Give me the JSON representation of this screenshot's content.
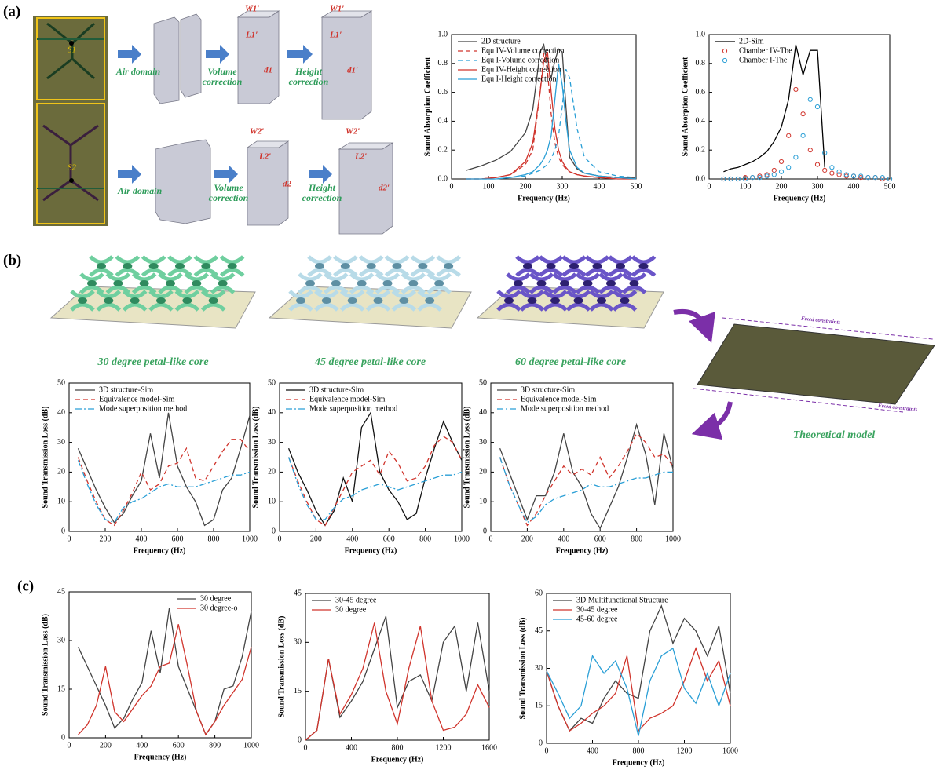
{
  "panels": {
    "a": "(a)",
    "b": "(b)",
    "c": "(c)"
  },
  "panel_a": {
    "cells": [
      "S1",
      "S2"
    ],
    "rows": [
      {
        "steps": [
          [
            "Air domain"
          ],
          [
            "Volume",
            "correction"
          ],
          [
            "Height",
            "correction"
          ]
        ],
        "dims": [
          "W1′",
          "L1′",
          "d1",
          "W1′",
          "L1′",
          "d1′"
        ]
      },
      {
        "steps": [
          [
            "Air domain"
          ],
          [
            "Volume",
            "correction"
          ],
          [
            "Height",
            "correction"
          ]
        ],
        "dims": [
          "W2′",
          "L2′",
          "d2",
          "W2′",
          "L2′",
          "d2′"
        ]
      }
    ]
  },
  "panel_b": {
    "cores": [
      "30 degree petal-like core",
      "45 degree petal-like core",
      "60 degree petal-like core"
    ],
    "model": {
      "title": "Theoretical model",
      "constraints": [
        "Fixed constraints",
        "Fixed constraints"
      ]
    }
  },
  "chart_data": [
    {
      "type": "line",
      "xlabel": "Frequency (Hz)",
      "ylabel": "Sound Absorption Coefficient",
      "legend": "upper left",
      "x": [
        40,
        80,
        120,
        160,
        200,
        220,
        240,
        250,
        260,
        270,
        280,
        290,
        300,
        310,
        320,
        340,
        360,
        400,
        450,
        500
      ],
      "xlim": [
        0,
        500
      ],
      "xticks": [
        0,
        100,
        200,
        300,
        400,
        500
      ],
      "ylim": [
        0,
        1
      ],
      "yticks": [
        {
          "value": 0,
          "label": "0.0"
        },
        0.2,
        0.4,
        0.6,
        0.8,
        {
          "value": 1,
          "label": "1.0"
        }
      ],
      "series": [
        {
          "name": "2D structure",
          "color": "#444444",
          "style": "solid",
          "values": [
            0.06,
            0.09,
            0.13,
            0.19,
            0.32,
            0.48,
            0.88,
            0.93,
            0.78,
            0.7,
            0.82,
            0.9,
            0.88,
            0.5,
            0.15,
            0.07,
            0.04,
            0.02,
            0.01,
            0.01
          ]
        },
        {
          "name": "Equ IV-Volume correction",
          "color": "#d0342c",
          "style": "dashed",
          "values": [
            0,
            0,
            0.01,
            0.03,
            0.1,
            0.2,
            0.6,
            0.87,
            0.75,
            0.45,
            0.25,
            0.15,
            0.1,
            0.07,
            0.05,
            0.03,
            0.02,
            0.01,
            0.01,
            0
          ]
        },
        {
          "name": "Equ I-Volume correction",
          "color": "#2a9fd6",
          "style": "dashed",
          "values": [
            0,
            0,
            0,
            0.01,
            0.02,
            0.04,
            0.06,
            0.08,
            0.1,
            0.14,
            0.2,
            0.3,
            0.5,
            0.76,
            0.7,
            0.35,
            0.15,
            0.05,
            0.02,
            0.01
          ]
        },
        {
          "name": "Equ IV-Height correction",
          "color": "#d0342c",
          "style": "solid",
          "values": [
            0,
            0,
            0.01,
            0.03,
            0.12,
            0.25,
            0.6,
            0.82,
            0.88,
            0.6,
            0.35,
            0.2,
            0.12,
            0.08,
            0.05,
            0.03,
            0.02,
            0.01,
            0,
            0
          ]
        },
        {
          "name": "Equ I-Height correction",
          "color": "#2a9fd6",
          "style": "solid",
          "values": [
            0,
            0,
            0,
            0.01,
            0.03,
            0.05,
            0.1,
            0.14,
            0.2,
            0.3,
            0.55,
            0.8,
            0.65,
            0.4,
            0.2,
            0.08,
            0.04,
            0.02,
            0.01,
            0
          ]
        }
      ]
    },
    {
      "type": "line",
      "xlabel": "Frequency (Hz)",
      "ylabel": "Sound Absorption Coefficient",
      "legend": "upper left",
      "x": [
        40,
        60,
        80,
        100,
        120,
        140,
        160,
        180,
        200,
        220,
        240,
        260,
        280,
        300,
        320,
        340,
        360,
        380,
        400,
        420,
        440,
        460,
        480,
        500
      ],
      "xlim": [
        0,
        500
      ],
      "xticks": [
        0,
        100,
        200,
        300,
        400,
        500
      ],
      "ylim": [
        0,
        1
      ],
      "yticks": [
        {
          "value": 0,
          "label": "0.0"
        },
        0.2,
        0.4,
        0.6,
        0.8,
        {
          "value": 1,
          "label": "1.0"
        }
      ],
      "series": [
        {
          "name": "2D-Sim",
          "color": "#000000",
          "style": "solid",
          "values": [
            0.05,
            0.07,
            0.08,
            0.1,
            0.12,
            0.15,
            0.19,
            0.26,
            0.36,
            0.55,
            0.93,
            0.72,
            0.89,
            0.89,
            0.08,
            null,
            null,
            null,
            null,
            null,
            null,
            null,
            null,
            null
          ]
        },
        {
          "name": "Chamber IV-The",
          "color": "#d0342c",
          "style": "markers",
          "values": [
            0,
            0,
            0,
            0.01,
            0.01,
            0.02,
            0.03,
            0.06,
            0.12,
            0.3,
            0.62,
            0.45,
            0.2,
            0.1,
            0.06,
            0.04,
            0.03,
            0.02,
            0.02,
            0.01,
            0.01,
            0.01,
            0,
            0
          ]
        },
        {
          "name": "Chamber I-The",
          "color": "#2a9fd6",
          "style": "markers",
          "values": [
            0,
            0,
            0,
            0,
            0.01,
            0.01,
            0.02,
            0.03,
            0.05,
            0.08,
            0.15,
            0.3,
            0.55,
            0.5,
            0.18,
            0.08,
            0.05,
            0.03,
            0.02,
            0.02,
            0.01,
            0.01,
            0.01,
            0
          ]
        }
      ]
    },
    {
      "type": "line",
      "xlabel": "Frequency (Hz)",
      "ylabel": "Sound Transmission Loss (dB)",
      "legend": "upper left",
      "x": [
        50,
        100,
        150,
        200,
        250,
        300,
        350,
        400,
        450,
        500,
        550,
        600,
        650,
        700,
        750,
        800,
        850,
        900,
        950,
        1000
      ],
      "xlim": [
        0,
        1000
      ],
      "xticks": [
        0,
        200,
        400,
        600,
        800,
        1000
      ],
      "ylim": [
        0,
        50
      ],
      "yticks": [
        0,
        10,
        20,
        30,
        40,
        50
      ],
      "series": [
        {
          "name": "3D structure-Sim",
          "color": "#444444",
          "style": "solid",
          "values": [
            28,
            21,
            14,
            8,
            3,
            6,
            12,
            17,
            33,
            18,
            40,
            22,
            15,
            10,
            2,
            4,
            14,
            18,
            28,
            39
          ]
        },
        {
          "name": "Equivalence model-Sim",
          "color": "#d0342c",
          "style": "dashed",
          "values": [
            25,
            17,
            10,
            4,
            2,
            7,
            13,
            20,
            14,
            16,
            22,
            23,
            28,
            18,
            17,
            22,
            27,
            31,
            31,
            27
          ]
        },
        {
          "name": "Mode superposition method",
          "color": "#2a9fd6",
          "style": "dashdot",
          "values": [
            24,
            16,
            9,
            4,
            3,
            8,
            10,
            11,
            13,
            15,
            16,
            15,
            15,
            15,
            16,
            17,
            18,
            19,
            19,
            20
          ]
        }
      ]
    },
    {
      "type": "line",
      "xlabel": "Frequency (Hz)",
      "ylabel": "Sound Transmission Loss (dB)",
      "legend": "upper left",
      "x": [
        50,
        100,
        150,
        200,
        250,
        300,
        350,
        400,
        450,
        500,
        550,
        600,
        650,
        700,
        750,
        800,
        850,
        900,
        950,
        1000
      ],
      "xlim": [
        0,
        1000
      ],
      "xticks": [
        0,
        200,
        400,
        600,
        800,
        1000
      ],
      "ylim": [
        0,
        50
      ],
      "yticks": [
        0,
        10,
        20,
        30,
        40,
        50
      ],
      "series": [
        {
          "name": "3D structure-Sim",
          "color": "#111111",
          "style": "solid",
          "values": [
            28,
            20,
            14,
            7,
            2,
            7,
            18,
            10,
            35,
            40,
            20,
            14,
            10,
            4,
            6,
            18,
            28,
            37,
            30,
            24
          ]
        },
        {
          "name": "Equivalence model-Sim",
          "color": "#d0342c",
          "style": "dashed",
          "values": [
            25,
            17,
            10,
            4,
            2,
            8,
            14,
            20,
            22,
            24,
            19,
            27,
            23,
            17,
            18,
            22,
            29,
            32,
            30,
            24
          ]
        },
        {
          "name": "Mode superposition method",
          "color": "#2a9fd6",
          "style": "dashdot",
          "values": [
            25,
            16,
            9,
            4,
            4,
            8,
            11,
            12,
            14,
            15,
            16,
            15,
            14,
            15,
            16,
            17,
            18,
            19,
            19,
            20
          ]
        }
      ]
    },
    {
      "type": "line",
      "xlabel": "Frequency (Hz)",
      "ylabel": "Sound Transmission Loss (dB)",
      "legend": "upper left",
      "x": [
        50,
        100,
        150,
        200,
        250,
        300,
        350,
        400,
        450,
        500,
        550,
        600,
        650,
        700,
        750,
        800,
        850,
        900,
        950,
        1000
      ],
      "xlim": [
        0,
        1000
      ],
      "xticks": [
        0,
        200,
        400,
        600,
        800,
        1000
      ],
      "ylim": [
        0,
        50
      ],
      "yticks": [
        0,
        10,
        20,
        30,
        40,
        50
      ],
      "series": [
        {
          "name": "3D structure-Sim",
          "color": "#444444",
          "style": "solid",
          "values": [
            28,
            20,
            12,
            4,
            12,
            12,
            20,
            33,
            20,
            15,
            6,
            1,
            8,
            15,
            25,
            36,
            26,
            9,
            33,
            21
          ]
        },
        {
          "name": "Equivalence model-Sim",
          "color": "#d0342c",
          "style": "dashed",
          "values": [
            25,
            16,
            9,
            2,
            6,
            12,
            17,
            22,
            19,
            21,
            19,
            25,
            18,
            22,
            27,
            33,
            30,
            25,
            26,
            22
          ]
        },
        {
          "name": "Mode superposition method",
          "color": "#2a9fd6",
          "style": "dashdot",
          "values": [
            25,
            16,
            9,
            3,
            5,
            9,
            11,
            12,
            13,
            14,
            16,
            15,
            15,
            16,
            17,
            18,
            18,
            19,
            20,
            20
          ]
        }
      ]
    },
    {
      "type": "line",
      "xlabel": "Frequency (Hz)",
      "ylabel": "Sound Transmission Loss (dB)",
      "legend": "upper right",
      "x": [
        50,
        100,
        150,
        200,
        250,
        300,
        350,
        400,
        450,
        500,
        550,
        600,
        650,
        700,
        750,
        800,
        850,
        900,
        950,
        1000
      ],
      "xlim": [
        0,
        1000
      ],
      "xticks": [
        0,
        200,
        400,
        600,
        800,
        1000
      ],
      "ylim": [
        0,
        45
      ],
      "yticks": [
        0,
        15,
        30,
        45
      ],
      "series": [
        {
          "name": "30 degree",
          "color": "#444444",
          "style": "solid",
          "values": [
            28,
            22,
            16,
            10,
            3,
            6,
            12,
            17,
            33,
            20,
            40,
            22,
            15,
            8,
            1,
            5,
            15,
            16,
            25,
            39
          ]
        },
        {
          "name": "30 degree-o",
          "color": "#d0342c",
          "style": "solid",
          "values": [
            1,
            4,
            10,
            22,
            8,
            5,
            9,
            13,
            16,
            22,
            23,
            35,
            22,
            8,
            1,
            5,
            10,
            14,
            18,
            28
          ]
        }
      ]
    },
    {
      "type": "line",
      "xlabel": "Frequency (Hz)",
      "ylabel": "Sound Transmission Loss (dB)",
      "legend": "upper left",
      "x": [
        0,
        100,
        200,
        300,
        400,
        500,
        600,
        700,
        800,
        900,
        1000,
        1100,
        1200,
        1300,
        1400,
        1500,
        1600
      ],
      "xlim": [
        0,
        1600
      ],
      "xticks": [
        0,
        400,
        800,
        1200,
        1600
      ],
      "ylim": [
        0,
        45
      ],
      "yticks": [
        0,
        15,
        30,
        45
      ],
      "series": [
        {
          "name": "30-45 degree",
          "color": "#444444",
          "style": "solid",
          "values": [
            0,
            3,
            25,
            7,
            12,
            18,
            28,
            38,
            10,
            18,
            20,
            12,
            30,
            35,
            15,
            36,
            15
          ]
        },
        {
          "name": "30 degree",
          "color": "#d0342c",
          "style": "solid",
          "values": [
            0,
            3,
            25,
            8,
            14,
            22,
            36,
            15,
            5,
            22,
            35,
            12,
            3,
            4,
            8,
            17,
            10
          ]
        }
      ]
    },
    {
      "type": "line",
      "xlabel": "Frequency (Hz)",
      "ylabel": "Sound Transmission Loss (dB)",
      "legend": "upper left",
      "x": [
        0,
        100,
        200,
        300,
        400,
        500,
        600,
        700,
        800,
        900,
        1000,
        1100,
        1200,
        1300,
        1400,
        1500,
        1600
      ],
      "xlim": [
        0,
        1600
      ],
      "xticks": [
        0,
        400,
        800,
        1200,
        1600
      ],
      "ylim": [
        0,
        60
      ],
      "yticks": [
        0,
        15,
        30,
        45,
        60
      ],
      "series": [
        {
          "name": "3D Multifunctional Structure",
          "color": "#444444",
          "style": "solid",
          "values": [
            29,
            15,
            5,
            10,
            8,
            18,
            25,
            20,
            18,
            45,
            55,
            40,
            50,
            45,
            35,
            47,
            20
          ]
        },
        {
          "name": "30-45 degree",
          "color": "#d0342c",
          "style": "solid",
          "values": [
            29,
            15,
            5,
            8,
            12,
            15,
            20,
            35,
            5,
            10,
            12,
            15,
            25,
            38,
            25,
            33,
            15
          ]
        },
        {
          "name": "45-60 degree",
          "color": "#2a9fd6",
          "style": "solid",
          "values": [
            29,
            20,
            10,
            15,
            35,
            28,
            33,
            22,
            3,
            25,
            35,
            38,
            22,
            16,
            28,
            15,
            28
          ]
        }
      ]
    }
  ]
}
